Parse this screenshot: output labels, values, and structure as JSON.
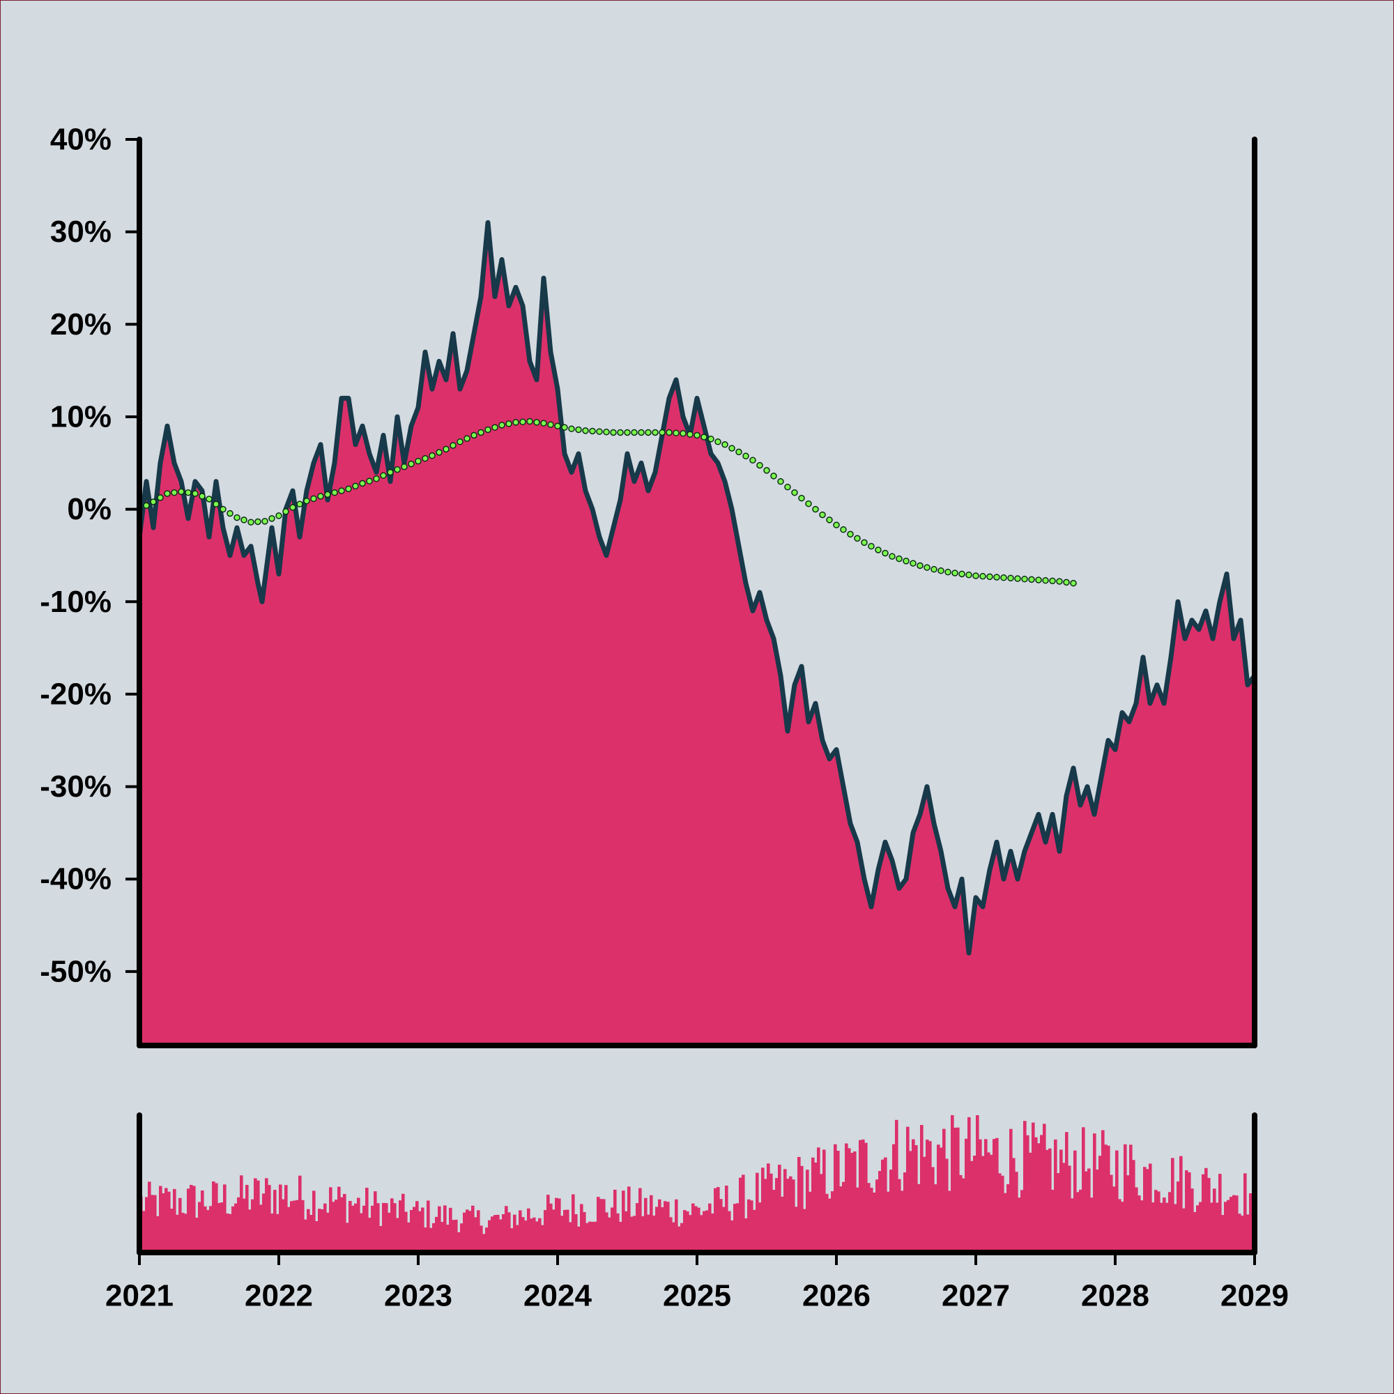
{
  "colors": {
    "background": "#d3dae0",
    "area_fill": "#dc306a",
    "price_line": "#17394a",
    "trend_dot_fill": "#7dff4f",
    "trend_dot_stroke": "#0a2a14",
    "volume_fill": "#dc306a",
    "axis": "#000000"
  },
  "chart_data": [
    {
      "type": "area",
      "panel": "price",
      "title": "",
      "xlabel": "",
      "ylabel": "",
      "x_range": [
        "2021-01-01",
        "2029-01-01"
      ],
      "ylim": [
        -58,
        40
      ],
      "grid": false,
      "legend": "none",
      "x_ticks": [
        {
          "label": "2021",
          "x": 2021.0
        },
        {
          "label": "2022",
          "x": 2022.0
        },
        {
          "label": "2023",
          "x": 2023.0
        },
        {
          "label": "2024",
          "x": 2024.0
        },
        {
          "label": "2025",
          "x": 2025.0
        },
        {
          "label": "2026",
          "x": 2026.0
        },
        {
          "label": "2027",
          "x": 2027.0
        },
        {
          "label": "2028",
          "x": 2028.0
        },
        {
          "label": "2029",
          "x": 2029.0
        }
      ],
      "y_ticks": [
        {
          "label": "40%",
          "y": 40
        },
        {
          "label": "30%",
          "y": 30
        },
        {
          "label": "20%",
          "y": 20
        },
        {
          "label": "10%",
          "y": 10
        },
        {
          "label": "0%",
          "y": 0
        },
        {
          "label": "-10%",
          "y": -10
        },
        {
          "label": "-20%",
          "y": -20
        },
        {
          "label": "-30%",
          "y": -30
        },
        {
          "label": "-40%",
          "y": -40
        },
        {
          "label": "-50%",
          "y": -50
        }
      ],
      "series": [
        {
          "kind": "area-line",
          "points": [
            [
              2021.0,
              -3
            ],
            [
              2021.05,
              3
            ],
            [
              2021.1,
              -2
            ],
            [
              2021.15,
              5
            ],
            [
              2021.2,
              9
            ],
            [
              2021.25,
              5
            ],
            [
              2021.3,
              3
            ],
            [
              2021.35,
              -1
            ],
            [
              2021.4,
              3
            ],
            [
              2021.45,
              2
            ],
            [
              2021.5,
              -3
            ],
            [
              2021.55,
              3
            ],
            [
              2021.6,
              -2
            ],
            [
              2021.65,
              -5
            ],
            [
              2021.7,
              -2
            ],
            [
              2021.75,
              -5
            ],
            [
              2021.8,
              -4
            ],
            [
              2021.85,
              -8
            ],
            [
              2021.88,
              -10
            ],
            [
              2021.95,
              -2
            ],
            [
              2022.0,
              -7
            ],
            [
              2022.05,
              0
            ],
            [
              2022.1,
              2
            ],
            [
              2022.15,
              -3
            ],
            [
              2022.2,
              2
            ],
            [
              2022.25,
              5
            ],
            [
              2022.3,
              7
            ],
            [
              2022.35,
              1
            ],
            [
              2022.4,
              5
            ],
            [
              2022.45,
              12
            ],
            [
              2022.5,
              12
            ],
            [
              2022.55,
              7
            ],
            [
              2022.6,
              9
            ],
            [
              2022.65,
              6
            ],
            [
              2022.7,
              4
            ],
            [
              2022.75,
              8
            ],
            [
              2022.8,
              3
            ],
            [
              2022.85,
              10
            ],
            [
              2022.9,
              5
            ],
            [
              2022.95,
              9
            ],
            [
              2023.0,
              11
            ],
            [
              2023.05,
              17
            ],
            [
              2023.1,
              13
            ],
            [
              2023.15,
              16
            ],
            [
              2023.2,
              14
            ],
            [
              2023.25,
              19
            ],
            [
              2023.3,
              13
            ],
            [
              2023.35,
              15
            ],
            [
              2023.4,
              19
            ],
            [
              2023.45,
              23
            ],
            [
              2023.5,
              31
            ],
            [
              2023.55,
              23
            ],
            [
              2023.6,
              27
            ],
            [
              2023.65,
              22
            ],
            [
              2023.7,
              24
            ],
            [
              2023.75,
              22
            ],
            [
              2023.8,
              16
            ],
            [
              2023.85,
              14
            ],
            [
              2023.9,
              25
            ],
            [
              2023.95,
              17
            ],
            [
              2024.0,
              13
            ],
            [
              2024.05,
              6
            ],
            [
              2024.1,
              4
            ],
            [
              2024.15,
              6
            ],
            [
              2024.2,
              2
            ],
            [
              2024.25,
              0
            ],
            [
              2024.3,
              -3
            ],
            [
              2024.35,
              -5
            ],
            [
              2024.4,
              -2
            ],
            [
              2024.45,
              1
            ],
            [
              2024.5,
              6
            ],
            [
              2024.55,
              3
            ],
            [
              2024.6,
              5
            ],
            [
              2024.65,
              2
            ],
            [
              2024.7,
              4
            ],
            [
              2024.75,
              8
            ],
            [
              2024.8,
              12
            ],
            [
              2024.85,
              14
            ],
            [
              2024.9,
              10
            ],
            [
              2024.95,
              8
            ],
            [
              2025.0,
              12
            ],
            [
              2025.05,
              9
            ],
            [
              2025.1,
              6
            ],
            [
              2025.15,
              5
            ],
            [
              2025.2,
              3
            ],
            [
              2025.25,
              0
            ],
            [
              2025.3,
              -4
            ],
            [
              2025.35,
              -8
            ],
            [
              2025.4,
              -11
            ],
            [
              2025.45,
              -9
            ],
            [
              2025.5,
              -12
            ],
            [
              2025.55,
              -14
            ],
            [
              2025.6,
              -18
            ],
            [
              2025.65,
              -24
            ],
            [
              2025.7,
              -19
            ],
            [
              2025.75,
              -17
            ],
            [
              2025.8,
              -23
            ],
            [
              2025.85,
              -21
            ],
            [
              2025.9,
              -25
            ],
            [
              2025.95,
              -27
            ],
            [
              2026.0,
              -26
            ],
            [
              2026.05,
              -30
            ],
            [
              2026.1,
              -34
            ],
            [
              2026.15,
              -36
            ],
            [
              2026.2,
              -40
            ],
            [
              2026.25,
              -43
            ],
            [
              2026.3,
              -39
            ],
            [
              2026.35,
              -36
            ],
            [
              2026.4,
              -38
            ],
            [
              2026.45,
              -41
            ],
            [
              2026.5,
              -40
            ],
            [
              2026.55,
              -35
            ],
            [
              2026.6,
              -33
            ],
            [
              2026.65,
              -30
            ],
            [
              2026.7,
              -34
            ],
            [
              2026.75,
              -37
            ],
            [
              2026.8,
              -41
            ],
            [
              2026.85,
              -43
            ],
            [
              2026.9,
              -40
            ],
            [
              2026.95,
              -48
            ],
            [
              2027.0,
              -42
            ],
            [
              2027.05,
              -43
            ],
            [
              2027.1,
              -39
            ],
            [
              2027.15,
              -36
            ],
            [
              2027.2,
              -40
            ],
            [
              2027.25,
              -37
            ],
            [
              2027.3,
              -40
            ],
            [
              2027.35,
              -37
            ],
            [
              2027.4,
              -35
            ],
            [
              2027.45,
              -33
            ],
            [
              2027.5,
              -36
            ],
            [
              2027.55,
              -33
            ],
            [
              2027.6,
              -37
            ],
            [
              2027.65,
              -31
            ],
            [
              2027.7,
              -28
            ],
            [
              2027.75,
              -32
            ],
            [
              2027.8,
              -30
            ],
            [
              2027.85,
              -33
            ],
            [
              2027.9,
              -29
            ],
            [
              2027.95,
              -25
            ],
            [
              2028.0,
              -26
            ],
            [
              2028.05,
              -22
            ],
            [
              2028.1,
              -23
            ],
            [
              2028.15,
              -21
            ],
            [
              2028.2,
              -16
            ],
            [
              2028.25,
              -21
            ],
            [
              2028.3,
              -19
            ],
            [
              2028.35,
              -21
            ],
            [
              2028.4,
              -16
            ],
            [
              2028.45,
              -10
            ],
            [
              2028.5,
              -14
            ],
            [
              2028.55,
              -12
            ],
            [
              2028.6,
              -13
            ],
            [
              2028.65,
              -11
            ],
            [
              2028.7,
              -14
            ],
            [
              2028.75,
              -10
            ],
            [
              2028.8,
              -7
            ],
            [
              2028.85,
              -14
            ],
            [
              2028.9,
              -12
            ],
            [
              2028.95,
              -19
            ],
            [
              2029.0,
              -18
            ]
          ]
        },
        {
          "kind": "dotted-trend",
          "points": [
            [
              2021.0,
              0
            ],
            [
              2021.1,
              0.8
            ],
            [
              2021.2,
              1.7
            ],
            [
              2021.3,
              1.9
            ],
            [
              2021.4,
              1.7
            ],
            [
              2021.5,
              1.1
            ],
            [
              2021.6,
              0
            ],
            [
              2021.7,
              -0.9
            ],
            [
              2021.8,
              -1.4
            ],
            [
              2021.9,
              -1.3
            ],
            [
              2022.0,
              -0.7
            ],
            [
              2022.1,
              0.2
            ],
            [
              2022.2,
              0.9
            ],
            [
              2022.3,
              1.4
            ],
            [
              2022.4,
              1.8
            ],
            [
              2022.5,
              2.2
            ],
            [
              2022.6,
              2.8
            ],
            [
              2022.7,
              3.3
            ],
            [
              2022.8,
              4.0
            ],
            [
              2022.9,
              4.6
            ],
            [
              2023.0,
              5.2
            ],
            [
              2023.1,
              5.8
            ],
            [
              2023.2,
              6.5
            ],
            [
              2023.3,
              7.3
            ],
            [
              2023.4,
              8.0
            ],
            [
              2023.5,
              8.6
            ],
            [
              2023.6,
              9.1
            ],
            [
              2023.7,
              9.4
            ],
            [
              2023.8,
              9.5
            ],
            [
              2023.9,
              9.3
            ],
            [
              2024.0,
              9.0
            ],
            [
              2024.1,
              8.7
            ],
            [
              2024.2,
              8.5
            ],
            [
              2024.3,
              8.4
            ],
            [
              2024.4,
              8.3
            ],
            [
              2024.5,
              8.3
            ],
            [
              2024.6,
              8.3
            ],
            [
              2024.7,
              8.3
            ],
            [
              2024.8,
              8.3
            ],
            [
              2024.9,
              8.2
            ],
            [
              2025.0,
              8.0
            ],
            [
              2025.1,
              7.6
            ],
            [
              2025.2,
              7.0
            ],
            [
              2025.3,
              6.2
            ],
            [
              2025.4,
              5.3
            ],
            [
              2025.5,
              4.2
            ],
            [
              2025.6,
              3.0
            ],
            [
              2025.7,
              1.8
            ],
            [
              2025.8,
              0.6
            ],
            [
              2025.9,
              -0.6
            ],
            [
              2026.0,
              -1.7
            ],
            [
              2026.1,
              -2.7
            ],
            [
              2026.2,
              -3.6
            ],
            [
              2026.3,
              -4.4
            ],
            [
              2026.4,
              -5.1
            ],
            [
              2026.5,
              -5.6
            ],
            [
              2026.6,
              -6.1
            ],
            [
              2026.7,
              -6.5
            ],
            [
              2026.8,
              -6.8
            ],
            [
              2026.9,
              -7.0
            ],
            [
              2027.0,
              -7.2
            ],
            [
              2027.1,
              -7.3
            ],
            [
              2027.2,
              -7.4
            ],
            [
              2027.3,
              -7.5
            ],
            [
              2027.4,
              -7.6
            ],
            [
              2027.5,
              -7.7
            ],
            [
              2027.6,
              -7.8
            ],
            [
              2027.7,
              -8.0
            ]
          ]
        }
      ]
    },
    {
      "type": "bar",
      "panel": "volume",
      "title": "",
      "x_range": [
        "2021-01-01",
        "2029-01-01"
      ],
      "y_ticks": [],
      "grid": false,
      "volume_profile": {
        "x": [
          2021.0,
          2021.5,
          2022.0,
          2022.5,
          2023.0,
          2023.5,
          2024.0,
          2024.5,
          2025.0,
          2025.5,
          2026.0,
          2026.5,
          2027.0,
          2027.5,
          2028.0,
          2028.5,
          2029.0
        ],
        "level": [
          0.38,
          0.4,
          0.45,
          0.38,
          0.3,
          0.24,
          0.33,
          0.36,
          0.32,
          0.48,
          0.62,
          0.78,
          0.76,
          0.7,
          0.66,
          0.54,
          0.44
        ]
      }
    }
  ]
}
